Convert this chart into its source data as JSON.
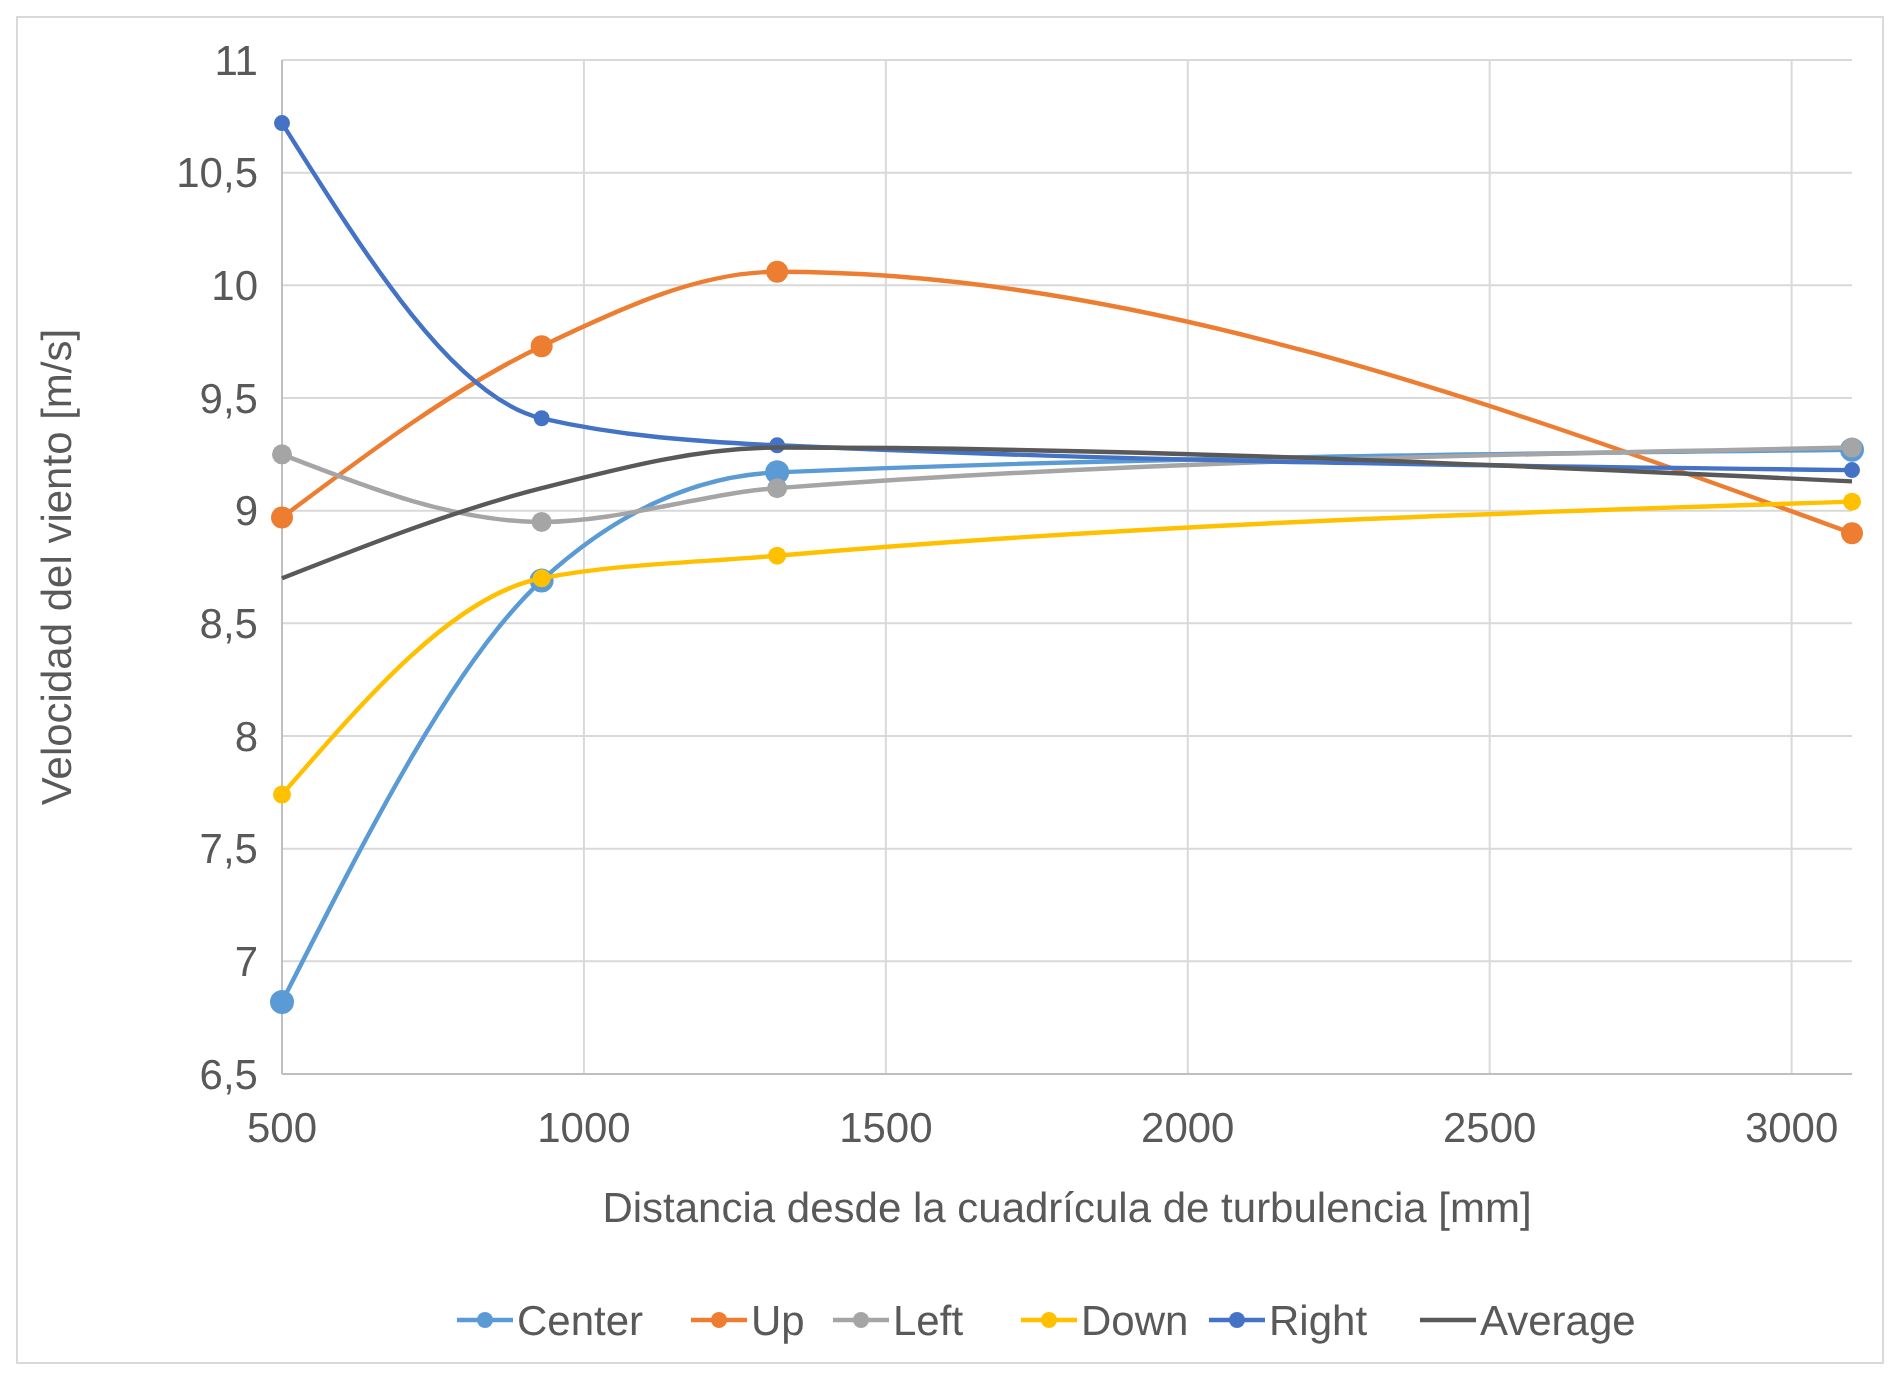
{
  "chart_data": {
    "type": "line",
    "xlabel": "Distancia desde la cuadrícula de turbulencia [mm]",
    "ylabel": "Velocidad del viento [m/s]",
    "x": [
      500,
      930,
      1320,
      3100
    ],
    "series": [
      {
        "name": "Center",
        "color": "#5b9bd5",
        "values": [
          6.82,
          8.69,
          9.17,
          9.27
        ]
      },
      {
        "name": "Up",
        "color": "#ed7d31",
        "values": [
          8.97,
          9.73,
          10.06,
          8.9
        ]
      },
      {
        "name": "Left",
        "color": "#a5a5a5",
        "values": [
          9.25,
          8.95,
          9.1,
          9.28
        ]
      },
      {
        "name": "Down",
        "color": "#ffc000",
        "values": [
          7.74,
          8.7,
          8.8,
          9.04
        ]
      },
      {
        "name": "Right",
        "color": "#4472c4",
        "values": [
          10.72,
          9.41,
          9.29,
          9.18
        ]
      },
      {
        "name": "Average",
        "color": "#595959",
        "values": [
          8.7,
          9.1,
          9.28,
          9.13
        ],
        "marker": "none"
      }
    ],
    "xlim": [
      500,
      3100
    ],
    "xticks": [
      500,
      1000,
      1500,
      2000,
      2500,
      3000
    ],
    "ylim": [
      6.5,
      11
    ],
    "yticks": [
      {
        "value": 6.5,
        "label": "6,5"
      },
      7,
      {
        "value": 7.5,
        "label": "7,5"
      },
      8,
      {
        "value": 8.5,
        "label": "8,5"
      },
      9,
      {
        "value": 9.5,
        "label": "9,5"
      },
      10,
      {
        "value": 10.5,
        "label": "10,5"
      },
      11
    ],
    "grid": true,
    "legend": "bottom",
    "marker": "circle",
    "line_style": "solid"
  }
}
